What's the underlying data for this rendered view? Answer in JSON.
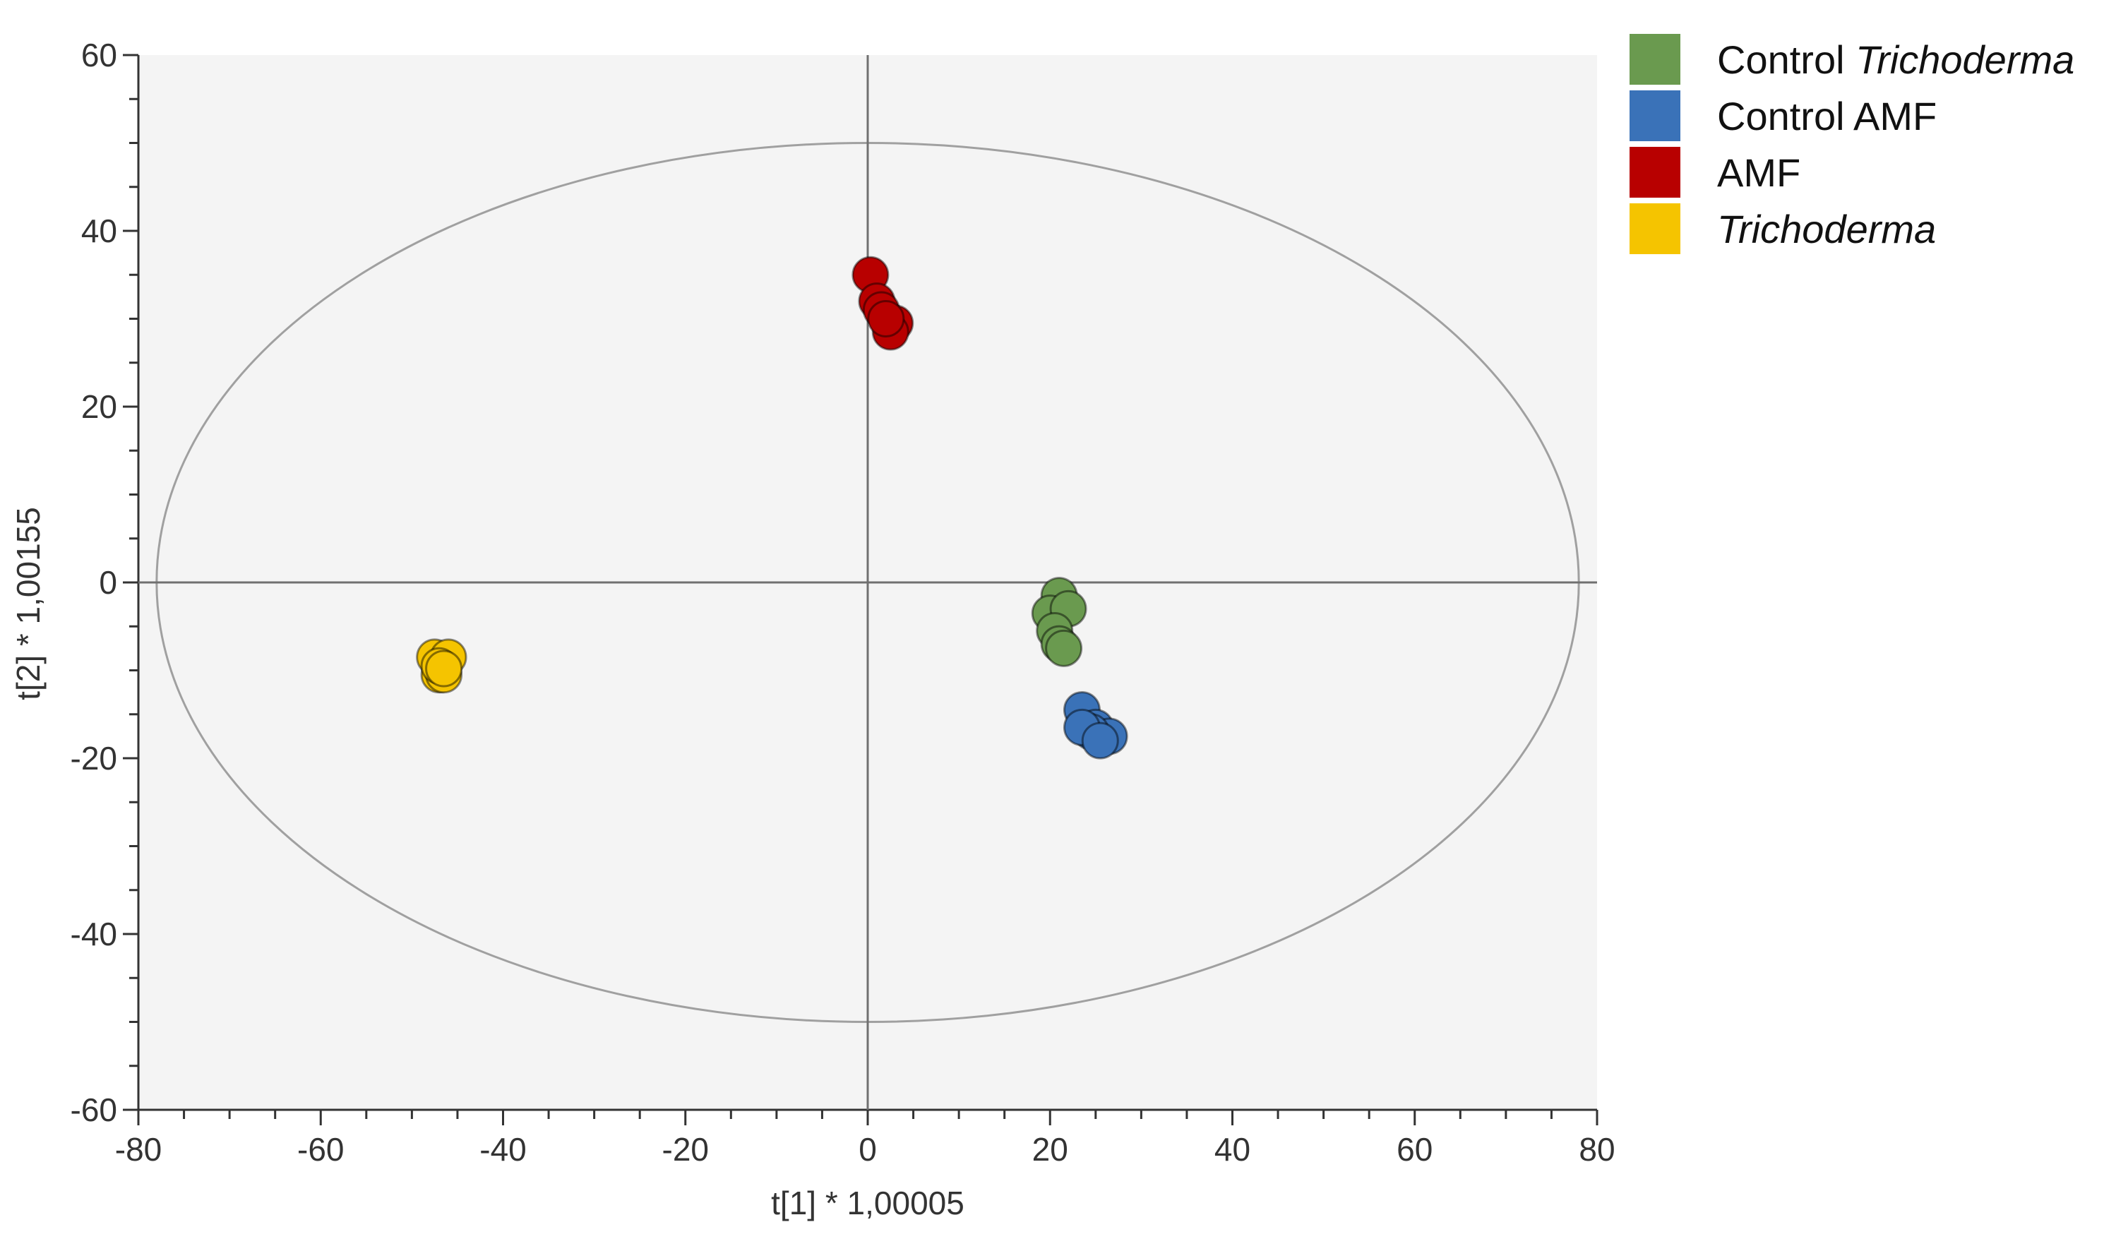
{
  "chart_data": {
    "type": "scatter",
    "xlabel": "t[1] * 1,00005",
    "ylabel": "t[2] * 1,00155",
    "xlim": [
      -80,
      80
    ],
    "ylim": [
      -60,
      60
    ],
    "xticks": [
      "-80",
      "-60",
      "-40",
      "-20",
      "0",
      "20",
      "40",
      "60",
      "80"
    ],
    "yticks": [
      "60",
      "40",
      "20",
      "0",
      "-20",
      "-40",
      "-60"
    ],
    "grid": false,
    "legend_position": "top-right, outside plot",
    "ellipse": {
      "x_radius": 78,
      "y_radius": 50
    },
    "series": [
      {
        "name": "Control Trichoderma",
        "name_plain": "Control ",
        "name_italic": "Trichoderma",
        "color": "#6a9a4f",
        "points": [
          [
            21,
            -1.5
          ],
          [
            20,
            -3.5
          ],
          [
            22,
            -3
          ],
          [
            20.5,
            -5.5
          ],
          [
            21,
            -7
          ],
          [
            21.5,
            -7.5
          ]
        ]
      },
      {
        "name": "Control AMF",
        "name_plain": "Control AMF",
        "name_italic": "",
        "color": "#3a72b8",
        "points": [
          [
            23.5,
            -14.5
          ],
          [
            25,
            -16.5
          ],
          [
            26.5,
            -17.5
          ],
          [
            24.5,
            -17
          ],
          [
            23.5,
            -16.5
          ],
          [
            25.5,
            -18
          ]
        ]
      },
      {
        "name": "AMF",
        "name_plain": "AMF",
        "name_italic": "",
        "color": "#b80000",
        "points": [
          [
            0.3,
            35
          ],
          [
            1,
            32
          ],
          [
            1.5,
            31
          ],
          [
            3,
            29.5
          ],
          [
            2.5,
            28.5
          ],
          [
            2,
            30
          ]
        ]
      },
      {
        "name": "Trichoderma",
        "name_plain": "",
        "name_italic": "Trichoderma",
        "color": "#f5c400",
        "points": [
          [
            -47.5,
            -8.5
          ],
          [
            -46,
            -8.5
          ],
          [
            -47,
            -10.5
          ],
          [
            -46.5,
            -10.5
          ],
          [
            -47,
            -9.5
          ],
          [
            -46.5,
            -9.8
          ]
        ]
      }
    ]
  }
}
